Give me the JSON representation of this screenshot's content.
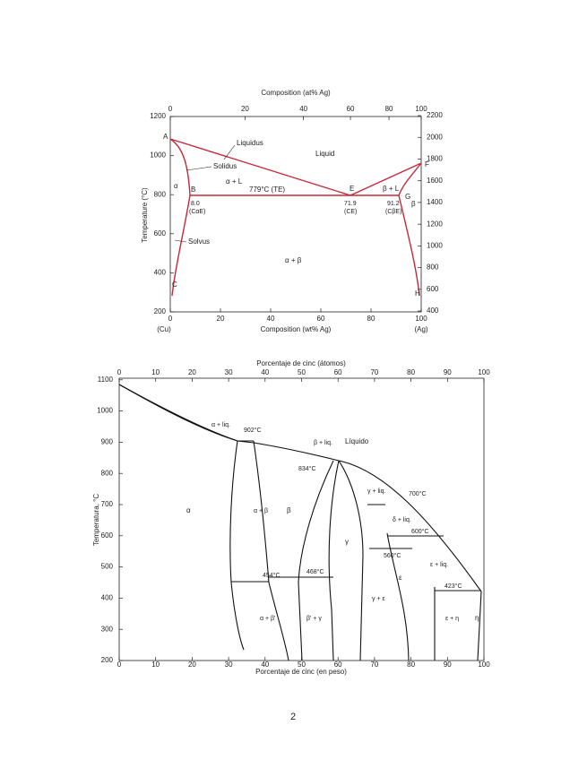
{
  "figure_1": {
    "top_axis_title": "Composition (at% Ag)",
    "bottom_axis_title": "Composition (wt% Ag)",
    "left_axis_title": "Temperature (°C)",
    "right_axis_title": "Temperature (°F)",
    "top_ticks": [
      0,
      20,
      40,
      60,
      80,
      100
    ],
    "bottom_ticks": [
      0,
      20,
      40,
      60,
      80,
      100
    ],
    "left_ticks": [
      200,
      400,
      600,
      800,
      1000,
      1200
    ],
    "right_ticks": [
      400,
      600,
      800,
      1000,
      1200,
      1400,
      1600,
      1800,
      2000,
      2200
    ],
    "labels": {
      "liquidus": "Liquidus",
      "solidus": "Solidus",
      "solvus": "Solvus",
      "liquid": "Liquid",
      "alpha_l": "α + L",
      "beta_l": "β + L",
      "alpha_beta": "α + β",
      "alpha": "α",
      "beta": "β",
      "te": "779°C (TE)",
      "c_ae": "8.0",
      "c_ae_name": "(CαE)",
      "c_e": "71.9",
      "c_e_name": "(CE)",
      "c_be": "91.2",
      "c_be_name": "(CβE)",
      "cu": "(Cu)",
      "ag": "(Ag)",
      "a": "A",
      "b": "B",
      "c": "C",
      "e": "E",
      "f": "F",
      "g": "G",
      "h": "H"
    }
  },
  "figure_2": {
    "top_axis_title": "Porcentaje de cinc (átomos)",
    "bottom_axis_title": "Porcentaje de cinc (en peso)",
    "left_axis_title": "Temperatura, °C",
    "top_ticks": [
      0,
      10,
      20,
      30,
      40,
      50,
      60,
      70,
      80,
      90,
      100
    ],
    "bottom_ticks": [
      0,
      10,
      20,
      30,
      40,
      50,
      60,
      70,
      80,
      90,
      100
    ],
    "left_ticks": [
      200,
      300,
      400,
      500,
      600,
      700,
      800,
      900,
      1000,
      1100
    ],
    "labels": {
      "liquid": "Líquido",
      "alpha": "α",
      "beta": "β",
      "gamma": "γ",
      "epsilon": "ε",
      "eta": "η",
      "alpha_liq": "α + liq.",
      "beta_liq": "β + liq.",
      "gamma_liq": "γ + liq.",
      "delta_liq": "δ + liq.",
      "epsilon_liq": "ε + liq.",
      "alpha_beta": "α + β",
      "alpha_beta_p": "α + β'",
      "beta_p_gamma": "β' + γ",
      "gamma_epsilon": "γ + ε",
      "epsilon_eta": "ε + η",
      "t902": "902°C",
      "t834": "834°C",
      "t700": "700°C",
      "t600": "600°C",
      "t560": "560°C",
      "t454": "454°C",
      "t468": "468°C",
      "t423": "423°C"
    }
  },
  "page_number": "2"
}
